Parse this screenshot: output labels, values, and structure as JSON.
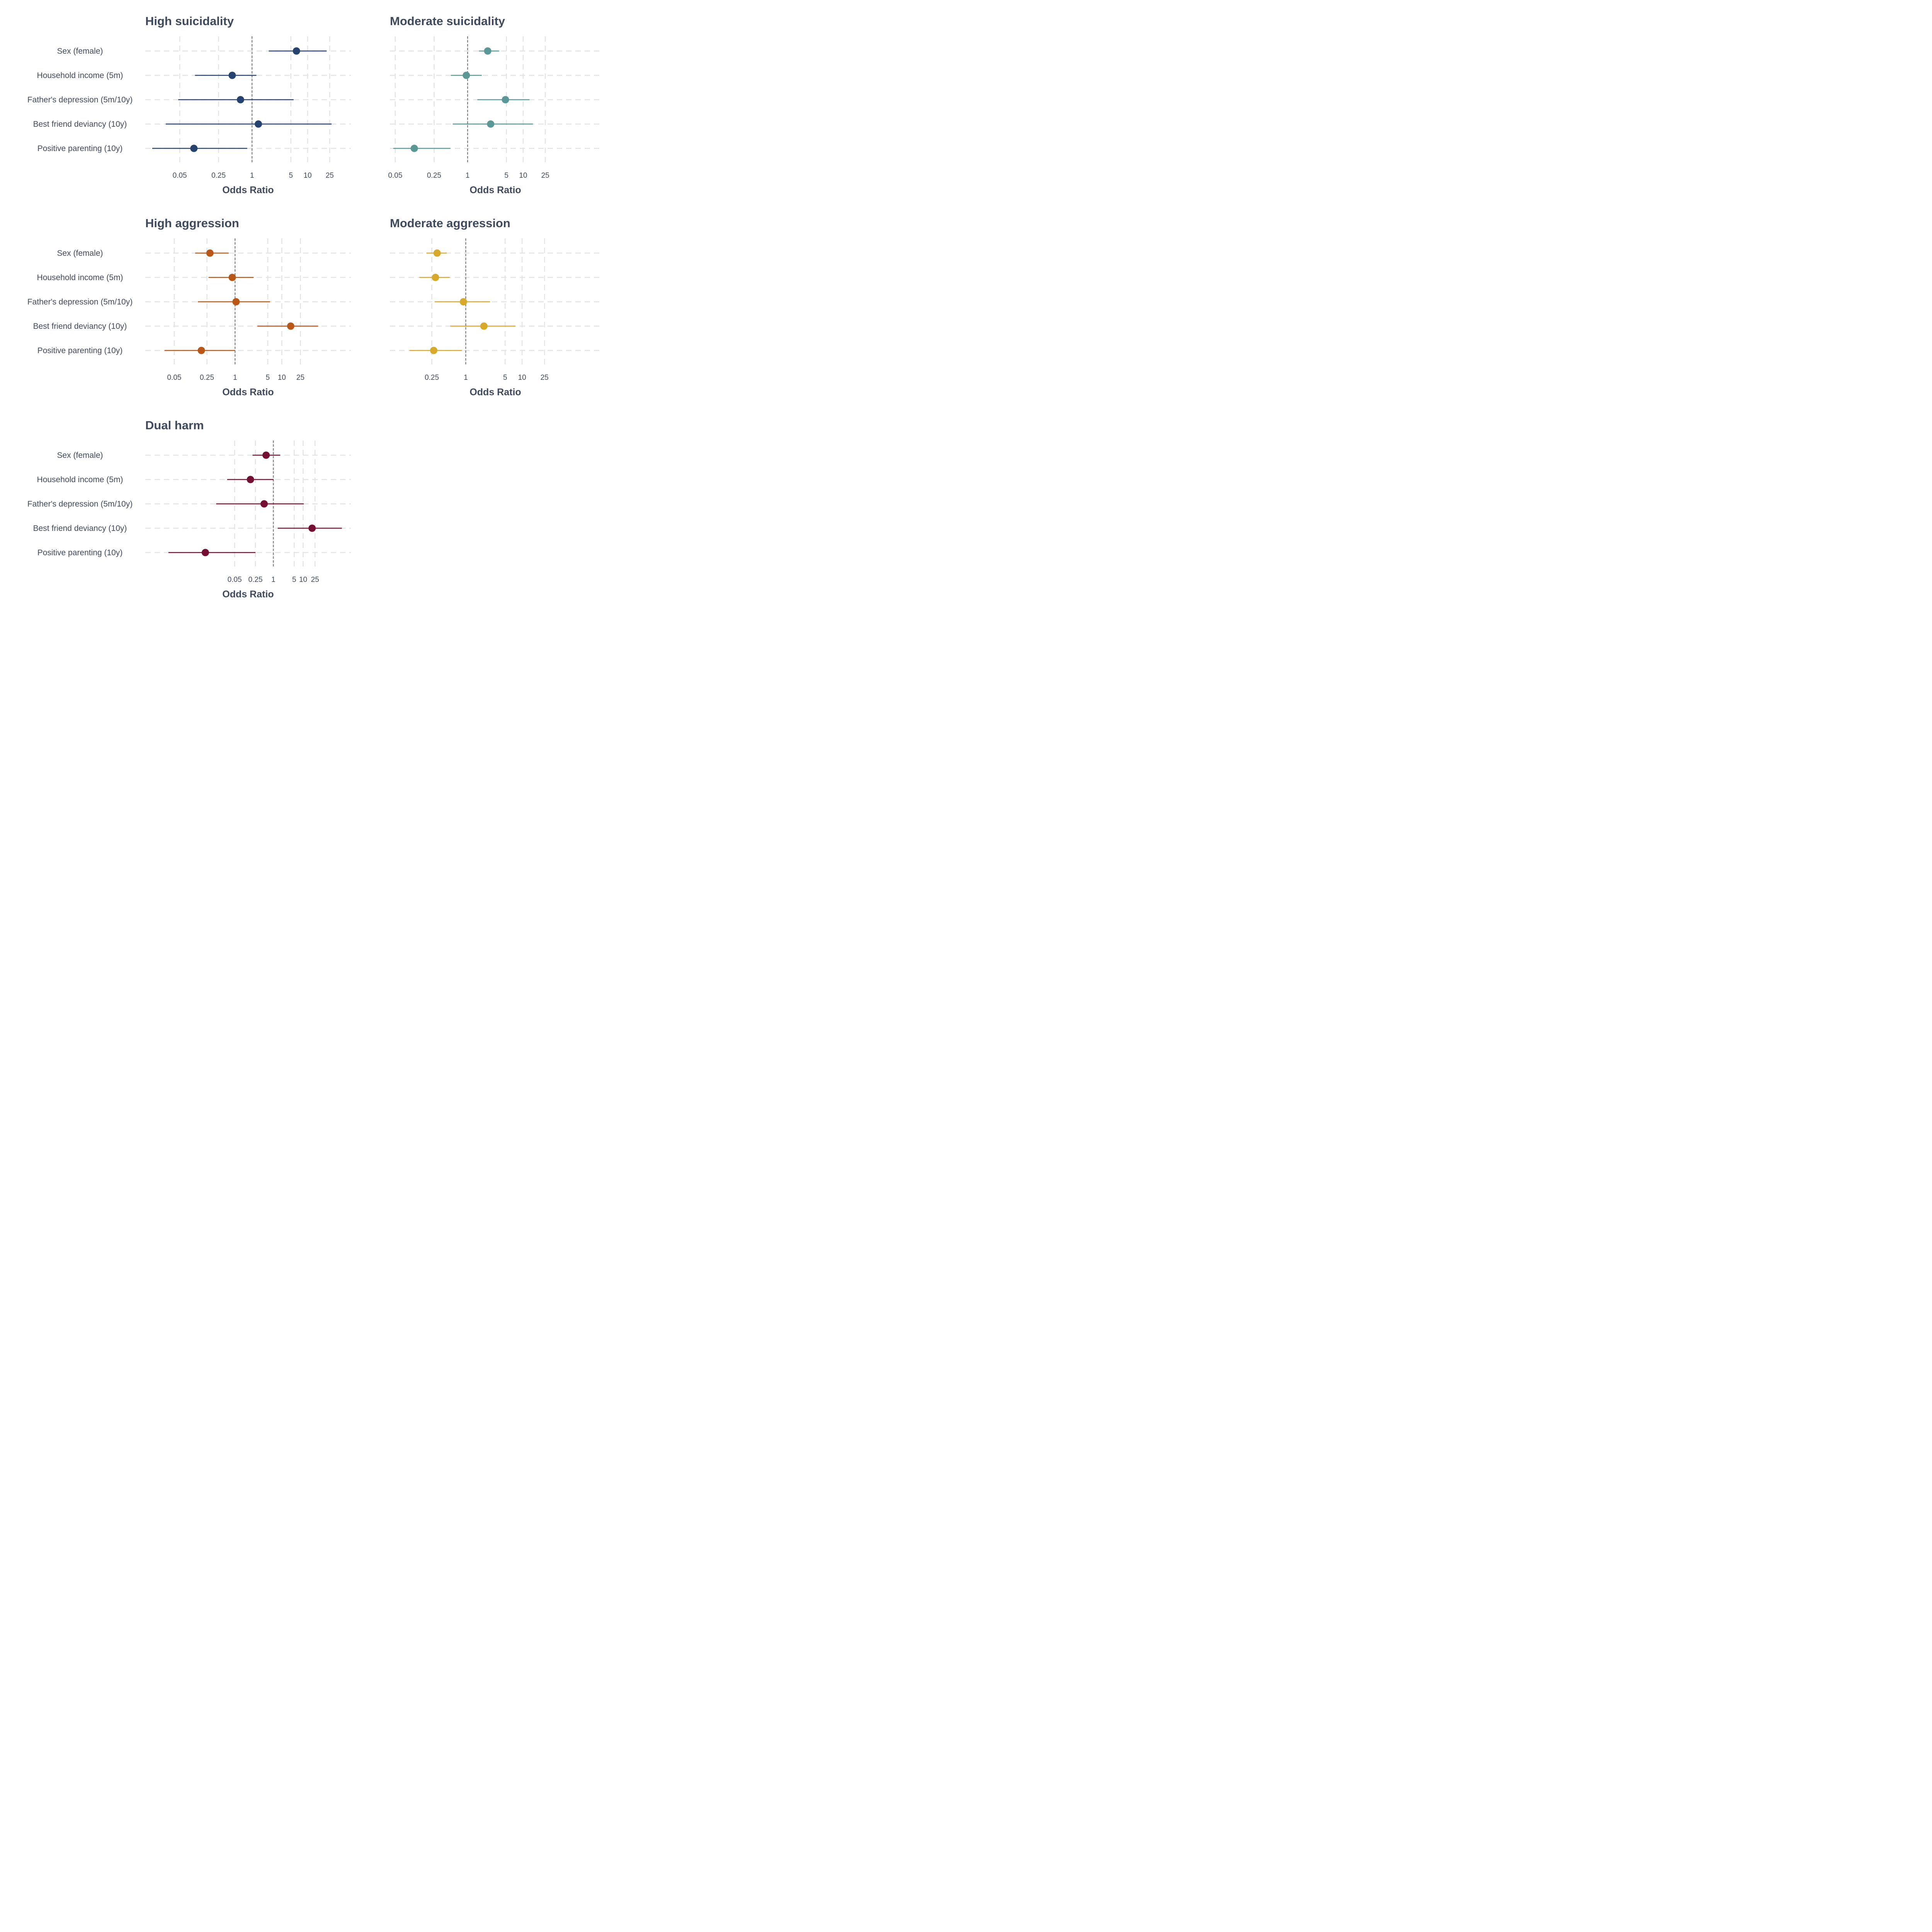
{
  "chart_data": [
    {
      "type": "scatter",
      "title": "High suicidality",
      "xlabel": "Odds Ratio",
      "xscale": "log",
      "xlim": [
        0.012,
        60
      ],
      "xticks": [
        0.05,
        0.25,
        1,
        5,
        10,
        25
      ],
      "xtick_labels": [
        "0.05",
        "0.25",
        "1",
        "5",
        "10",
        "25"
      ],
      "reference_line": 1,
      "color": "#26426e",
      "categories": [
        "Sex (female)",
        "Household income (5m)",
        "Father's depression (5m/10y)",
        "Best friend deviancy (10y)",
        "Positive parenting (10y)"
      ],
      "estimate": [
        6.3,
        0.44,
        0.62,
        1.3,
        0.09
      ],
      "ci_lower": [
        2.0,
        0.094,
        0.047,
        0.028,
        0.016
      ],
      "ci_upper": [
        22,
        1.2,
        5.6,
        27,
        0.82
      ]
    },
    {
      "type": "scatter",
      "title": "Moderate suicidality",
      "xlabel": "Odds Ratio",
      "xscale": "log",
      "xlim": [
        0.04,
        250
      ],
      "xticks": [
        0.05,
        0.25,
        1,
        5,
        10,
        25
      ],
      "xtick_labels": [
        "0.05",
        "0.25",
        "1",
        "5",
        "10",
        "25"
      ],
      "reference_line": 1,
      "color": "#5a9898",
      "categories": [
        "Sex (female)",
        "Household income (5m)",
        "Father's depression (5m/10y)",
        "Best friend deviancy (10y)",
        "Positive parenting (10y)"
      ],
      "estimate": [
        2.3,
        0.95,
        4.8,
        2.6,
        0.11
      ],
      "ci_lower": [
        1.6,
        0.5,
        1.5,
        0.54,
        0.046
      ],
      "ci_upper": [
        3.7,
        1.8,
        13,
        15,
        0.49
      ]
    },
    {
      "type": "scatter",
      "title": "High aggression",
      "xlabel": "Odds Ratio",
      "xscale": "log",
      "xlim": [
        0.012,
        300
      ],
      "xticks": [
        0.05,
        0.25,
        1,
        5,
        10,
        25
      ],
      "xtick_labels": [
        "0.05",
        "0.25",
        "1",
        "5",
        "10",
        "25"
      ],
      "reference_line": 1,
      "color": "#b85718",
      "categories": [
        "Sex (female)",
        "Household income (5m)",
        "Father's depression (5m/10y)",
        "Best friend deviancy (10y)",
        "Positive parenting (10y)"
      ],
      "estimate": [
        0.29,
        0.87,
        1.05,
        15.5,
        0.19
      ],
      "ci_lower": [
        0.14,
        0.27,
        0.16,
        3.0,
        0.031
      ],
      "ci_upper": [
        0.73,
        2.5,
        5.6,
        60,
        1.0
      ]
    },
    {
      "type": "scatter",
      "title": "Moderate aggression",
      "xlabel": "Odds Ratio",
      "xscale": "log",
      "xlim": [
        0.045,
        250
      ],
      "xticks": [
        0.25,
        1,
        5,
        10,
        25
      ],
      "xtick_labels": [
        "0.25",
        "1",
        "5",
        "10",
        "25"
      ],
      "reference_line": 1,
      "color": "#d7a92b",
      "categories": [
        "Sex (female)",
        "Household income (5m)",
        "Father's depression (5m/10y)",
        "Best friend deviancy (10y)",
        "Positive parenting (10y)"
      ],
      "estimate": [
        0.31,
        0.29,
        0.91,
        2.1,
        0.27
      ],
      "ci_lower": [
        0.2,
        0.15,
        0.28,
        0.53,
        0.1
      ],
      "ci_upper": [
        0.46,
        0.52,
        2.7,
        7.6,
        0.86
      ]
    },
    {
      "type": "scatter",
      "title": "Dual harm",
      "xlabel": "Odds Ratio",
      "xscale": "log",
      "xlim": [
        5e-05,
        400
      ],
      "xticks": [
        0.05,
        0.25,
        1,
        5,
        10,
        25
      ],
      "xtick_labels": [
        "0.05",
        "0.25",
        "1",
        "5",
        "10",
        "25"
      ],
      "reference_line": 1,
      "color": "#740f33",
      "categories": [
        "Sex (female)",
        "Household income (5m)",
        "Father's depression (5m/10y)",
        "Best friend deviancy (10y)",
        "Positive parenting (10y)"
      ],
      "estimate": [
        0.57,
        0.17,
        0.49,
        20,
        0.0052
      ],
      "ci_lower": [
        0.2,
        0.028,
        0.012,
        1.4,
        0.0003
      ],
      "ci_upper": [
        1.7,
        1.0,
        10.5,
        200,
        0.25
      ]
    }
  ]
}
